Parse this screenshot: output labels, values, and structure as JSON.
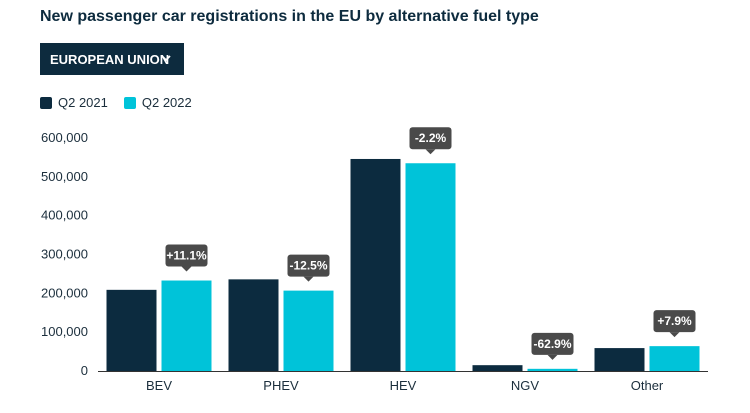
{
  "header": {
    "title": "New passenger car registrations in the EU by alternative fuel type"
  },
  "filter": {
    "selected": "EUROPEAN UNION",
    "icon": "chevron-down-icon"
  },
  "colors": {
    "q2_2021": "#0c2b3f",
    "q2_2022": "#00c3d9",
    "tooltip": "#4a4a4a",
    "axis": "#333333"
  },
  "chart_data": {
    "type": "bar",
    "title": "New passenger car registrations in the EU by alternative fuel type",
    "categories": [
      "BEV",
      "PHEV",
      "HEV",
      "NGV",
      "Other"
    ],
    "series": [
      {
        "name": "Q2 2021",
        "values": [
          209000,
          236000,
          546000,
          15000,
          59000
        ]
      },
      {
        "name": "Q2 2022",
        "values": [
          233000,
          207000,
          535000,
          5600,
          64000
        ]
      }
    ],
    "change_labels": [
      "+11.1%",
      "-12.5%",
      "-2.2%",
      "-62.9%",
      "+7.9%"
    ],
    "ylim": [
      0,
      600000
    ],
    "yticks": [
      0,
      100000,
      200000,
      300000,
      400000,
      500000,
      600000
    ],
    "ytick_labels": [
      "0",
      "100,000",
      "200,000",
      "300,000",
      "400,000",
      "500,000",
      "600,000"
    ],
    "grid": false,
    "legend_position": "top-left"
  }
}
